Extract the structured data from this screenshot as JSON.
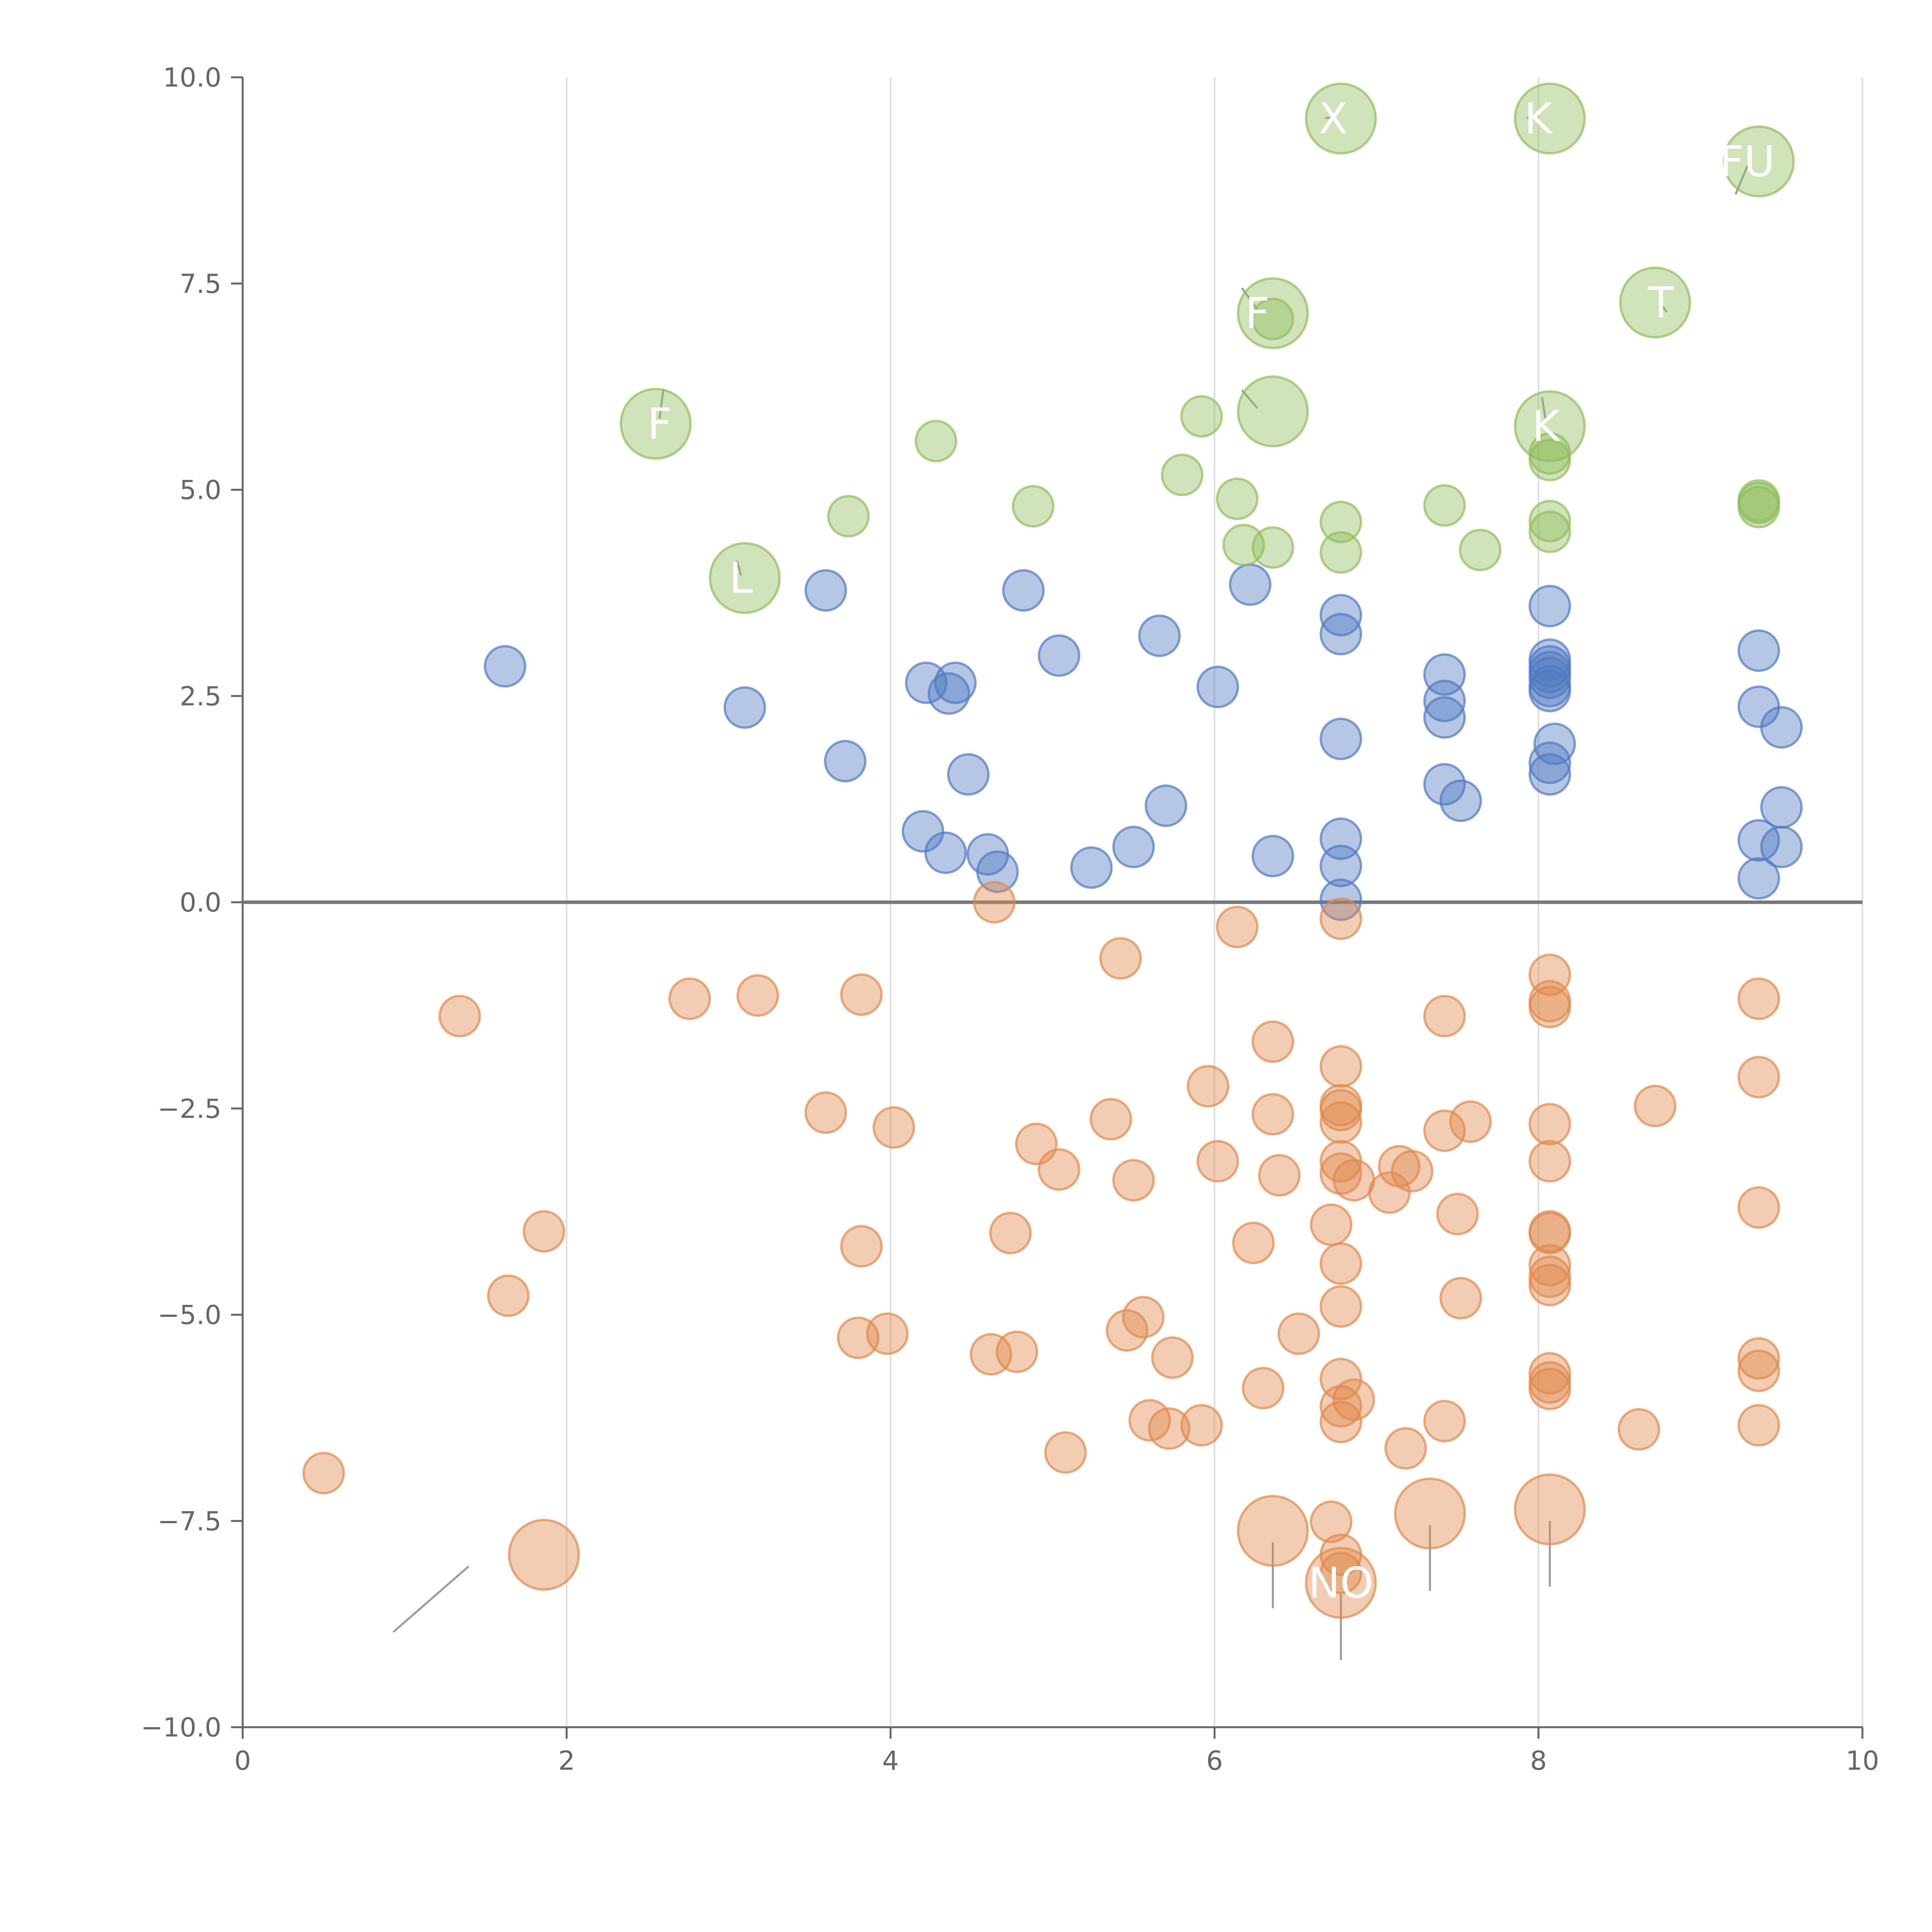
{
  "chart_data": {
    "type": "scatter",
    "title": "",
    "xlabel": "",
    "ylabel": "",
    "xlim": [
      0,
      10
    ],
    "ylim": [
      -10,
      10
    ],
    "grid": "vertical",
    "x_ticks": [
      0,
      2,
      4,
      6,
      8,
      10
    ],
    "y_ticks": [
      -10,
      -7.5,
      -5,
      -2.5,
      0,
      2.5,
      5,
      7.5,
      10
    ],
    "x_tick_labels": [
      "0",
      "2",
      "4",
      "6",
      "8",
      "10"
    ],
    "y_tick_labels": [
      "−10.0",
      "−7.5",
      "−5.0",
      "−2.5",
      "0.0",
      "2.5",
      "5.0",
      "7.5",
      "10.0"
    ],
    "colors": {
      "blue": "#4e79c1",
      "green": "#8fbd5a",
      "orange": "#e0894a",
      "axis": "#666666",
      "grid": "#dddddd",
      "zero": "#777777",
      "leader": "#999999"
    },
    "series": [
      {
        "name": "blue",
        "points": [
          [
            1.62,
            2.86
          ],
          [
            3.1,
            2.36
          ],
          [
            3.6,
            3.78
          ],
          [
            3.72,
            1.71
          ],
          [
            4.2,
            0.86
          ],
          [
            4.22,
            2.66
          ],
          [
            4.34,
            0.6
          ],
          [
            4.36,
            2.53
          ],
          [
            4.4,
            2.66
          ],
          [
            4.48,
            1.55
          ],
          [
            4.6,
            0.58
          ],
          [
            4.66,
            0.37
          ],
          [
            4.82,
            3.78
          ],
          [
            5.04,
            2.99
          ],
          [
            5.24,
            0.42
          ],
          [
            5.5,
            0.67
          ],
          [
            5.66,
            3.23
          ],
          [
            5.7,
            1.17
          ],
          [
            6.02,
            2.61
          ],
          [
            6.22,
            3.85
          ],
          [
            6.36,
            0.56
          ],
          [
            6.78,
            3.48
          ],
          [
            6.78,
            3.25
          ],
          [
            6.78,
            1.98
          ],
          [
            6.78,
            0.77
          ],
          [
            6.78,
            0.44
          ],
          [
            6.78,
            0.03
          ],
          [
            7.42,
            2.76
          ],
          [
            7.42,
            2.44
          ],
          [
            7.42,
            2.24
          ],
          [
            7.42,
            1.43
          ],
          [
            7.52,
            1.23
          ],
          [
            8.07,
            3.59
          ],
          [
            8.07,
            2.94
          ],
          [
            8.07,
            2.86
          ],
          [
            8.07,
            2.79
          ],
          [
            8.07,
            2.72
          ],
          [
            8.07,
            2.62
          ],
          [
            8.07,
            2.56
          ],
          [
            8.07,
            1.69
          ],
          [
            8.07,
            1.55
          ],
          [
            8.1,
            1.92
          ],
          [
            9.36,
            3.05
          ],
          [
            9.36,
            2.37
          ],
          [
            9.36,
            0.75
          ],
          [
            9.36,
            0.29
          ],
          [
            9.5,
            2.12
          ],
          [
            9.5,
            1.15
          ],
          [
            9.5,
            0.67
          ]
        ]
      },
      {
        "name": "green",
        "points": [
          [
            3.74,
            4.68
          ],
          [
            4.28,
            5.59
          ],
          [
            4.88,
            4.8
          ],
          [
            5.8,
            5.18
          ],
          [
            5.92,
            5.89
          ],
          [
            6.14,
            4.89
          ],
          [
            6.18,
            4.33
          ],
          [
            6.36,
            4.3
          ],
          [
            6.36,
            7.07
          ],
          [
            6.78,
            4.61
          ],
          [
            6.78,
            4.24
          ],
          [
            7.42,
            4.81
          ],
          [
            7.64,
            4.27
          ],
          [
            8.07,
            5.44
          ],
          [
            8.07,
            5.36
          ],
          [
            8.07,
            4.62
          ],
          [
            8.07,
            4.49
          ],
          [
            9.36,
            4.87
          ],
          [
            9.36,
            4.84
          ],
          [
            9.36,
            4.79
          ]
        ]
      },
      {
        "name": "orange",
        "points": [
          [
            0.5,
            -6.92
          ],
          [
            1.34,
            -1.38
          ],
          [
            1.64,
            -4.77
          ],
          [
            1.86,
            -3.99
          ],
          [
            2.76,
            -1.17
          ],
          [
            3.18,
            -1.13
          ],
          [
            3.6,
            -2.55
          ],
          [
            3.8,
            -5.28
          ],
          [
            3.82,
            -1.12
          ],
          [
            3.82,
            -4.17
          ],
          [
            3.98,
            -5.23
          ],
          [
            4.02,
            -2.73
          ],
          [
            4.62,
            -5.48
          ],
          [
            4.64,
            0
          ],
          [
            4.74,
            -4.01
          ],
          [
            4.78,
            -5.45
          ],
          [
            4.9,
            -2.93
          ],
          [
            5.04,
            -3.24
          ],
          [
            5.08,
            -6.67
          ],
          [
            5.36,
            -2.63
          ],
          [
            5.42,
            -0.68
          ],
          [
            5.46,
            -5.19
          ],
          [
            5.5,
            -3.37
          ],
          [
            5.56,
            -5.03
          ],
          [
            5.6,
            -6.28
          ],
          [
            5.72,
            -6.38
          ],
          [
            5.74,
            -5.52
          ],
          [
            5.92,
            -6.34
          ],
          [
            5.96,
            -2.23
          ],
          [
            6.02,
            -3.14
          ],
          [
            6.14,
            -0.3
          ],
          [
            6.24,
            -4.13
          ],
          [
            6.3,
            -5.89
          ],
          [
            6.36,
            -1.69
          ],
          [
            6.36,
            -2.57
          ],
          [
            6.4,
            -3.31
          ],
          [
            6.52,
            -5.23
          ],
          [
            6.72,
            -7.51
          ],
          [
            6.72,
            -3.91
          ],
          [
            6.78,
            -0.2
          ],
          [
            6.78,
            -1.99
          ],
          [
            6.78,
            -2.46
          ],
          [
            6.78,
            -2.52
          ],
          [
            6.78,
            -2.67
          ],
          [
            6.78,
            -3.14
          ],
          [
            6.78,
            -3.29
          ],
          [
            6.78,
            -4.38
          ],
          [
            6.78,
            -4.9
          ],
          [
            6.78,
            -5.78
          ],
          [
            6.78,
            -6.11
          ],
          [
            6.78,
            -6.3
          ],
          [
            6.78,
            -7.91
          ],
          [
            6.78,
            -8.13
          ],
          [
            6.86,
            -3.37
          ],
          [
            6.86,
            -6.03
          ],
          [
            7.08,
            -3.52
          ],
          [
            7.14,
            -3.2
          ],
          [
            7.22,
            -3.26
          ],
          [
            7.18,
            -6.62
          ],
          [
            7.42,
            -1.38
          ],
          [
            7.42,
            -2.77
          ],
          [
            7.42,
            -6.29
          ],
          [
            7.5,
            -3.78
          ],
          [
            7.52,
            -4.8
          ],
          [
            7.58,
            -2.66
          ],
          [
            8.07,
            -0.88
          ],
          [
            8.07,
            -1.2
          ],
          [
            8.07,
            -1.27
          ],
          [
            8.07,
            -2.69
          ],
          [
            8.07,
            -3.14
          ],
          [
            8.07,
            -3.99
          ],
          [
            8.07,
            -4.01
          ],
          [
            8.07,
            -4.4
          ],
          [
            8.07,
            -4.54
          ],
          [
            8.07,
            -4.64
          ],
          [
            8.07,
            -5.71
          ],
          [
            8.07,
            -5.82
          ],
          [
            8.07,
            -5.9
          ],
          [
            8.62,
            -6.39
          ],
          [
            8.72,
            -2.47
          ],
          [
            9.36,
            -1.17
          ],
          [
            9.36,
            -2.12
          ],
          [
            9.36,
            -3.7
          ],
          [
            9.36,
            -5.53
          ],
          [
            9.36,
            -5.68
          ],
          [
            9.36,
            -6.34
          ]
        ]
      },
      {
        "name": "green-large",
        "points": [
          [
            2.55,
            5.8
          ],
          [
            3.1,
            3.93
          ],
          [
            6.36,
            7.14
          ],
          [
            6.36,
            5.95
          ],
          [
            6.78,
            9.5
          ],
          [
            8.07,
            9.5
          ],
          [
            8.07,
            5.77
          ],
          [
            8.72,
            7.27
          ],
          [
            9.36,
            8.98
          ]
        ]
      },
      {
        "name": "orange-large",
        "points": [
          [
            1.86,
            -7.91
          ],
          [
            6.36,
            -7.62
          ],
          [
            6.78,
            -8.25
          ],
          [
            7.33,
            -7.41
          ],
          [
            8.07,
            -7.36
          ]
        ]
      }
    ],
    "annotations": [
      {
        "x": 6.78,
        "y": 9.5,
        "text": "X"
      },
      {
        "x": 8.07,
        "y": 9.5,
        "text": "K"
      },
      {
        "x": 9.36,
        "y": 8.98,
        "text": "FU"
      },
      {
        "x": 6.36,
        "y": 7.14,
        "text": "F"
      },
      {
        "x": 8.72,
        "y": 7.27,
        "text": "T"
      },
      {
        "x": 2.55,
        "y": 5.8,
        "text": "F"
      },
      {
        "x": 6.36,
        "y": 5.95,
        "text": ""
      },
      {
        "x": 8.07,
        "y": 5.77,
        "text": "K"
      },
      {
        "x": 3.1,
        "y": 3.93,
        "text": "L"
      },
      {
        "x": 6.78,
        "y": -8.25,
        "text": "NO"
      },
      {
        "x": 1.86,
        "y": -7.91,
        "text": ""
      },
      {
        "x": 6.36,
        "y": -7.62,
        "text": ""
      },
      {
        "x": 7.33,
        "y": -7.41,
        "text": ""
      },
      {
        "x": 8.07,
        "y": -7.36,
        "text": ""
      }
    ]
  }
}
